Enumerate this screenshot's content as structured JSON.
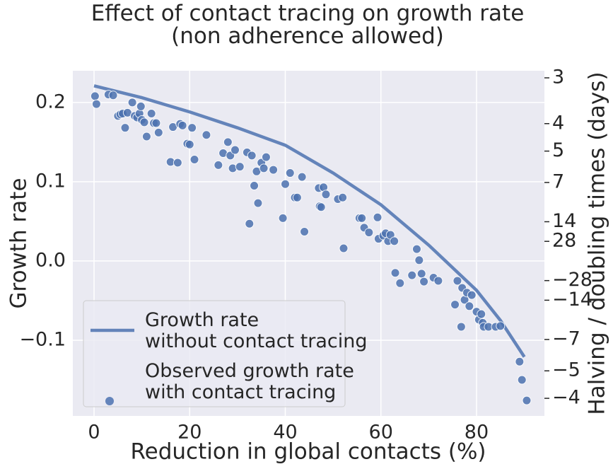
{
  "chart_data": {
    "type": "scatter",
    "title": "Effect of contact tracing on growth rate\n(non adherence allowed)",
    "xlabel": "Reduction in global contacts (%)",
    "ylabel": "Growth rate",
    "y2label": "Halving / doubling times (days)",
    "xlim": [
      -4.44,
      94.2
    ],
    "ylim": [
      -0.1955,
      0.24
    ],
    "y2lim": [
      -3.545,
      2.888
    ],
    "y2scale": "reciprocal",
    "xticks": [
      0,
      20,
      40,
      60,
      80
    ],
    "yticks": [
      {
        "value": -0.1,
        "label": "−0.1"
      },
      {
        "value": 0,
        "label": "0.0"
      },
      0.1,
      0.2
    ],
    "y2ticks": [
      3,
      4,
      5,
      7,
      14,
      28,
      {
        "value": -28,
        "label": "−28"
      },
      {
        "value": -14,
        "label": "−14"
      },
      {
        "value": -7,
        "label": "−7"
      },
      {
        "value": -5,
        "label": "−5"
      },
      {
        "value": -4,
        "label": "−4"
      }
    ],
    "grid": true,
    "legend": "lower left",
    "series": [
      {
        "name": "Growth rate\nwithout contact tracing",
        "type": "line",
        "color": "#4c72b0",
        "x": [
          0,
          10,
          20,
          30,
          40,
          50,
          60,
          70,
          80,
          85,
          90
        ],
        "values": [
          0.221,
          0.206,
          0.188,
          0.168,
          0.146,
          0.111,
          0.071,
          0.02,
          -0.037,
          -0.075,
          -0.121
        ]
      },
      {
        "name": "Observed growth rate\nwith contact tracing",
        "type": "scatter",
        "color": "#4c72b0",
        "x": [
          0.2,
          0.5,
          3,
          4,
          5,
          5.5,
          6,
          6.5,
          7,
          8,
          8.5,
          9,
          9.5,
          9.8,
          10,
          10.5,
          11,
          12,
          12.5,
          13,
          13.5,
          16,
          16.5,
          17.5,
          18,
          18.5,
          19.5,
          20,
          20.5,
          21,
          23.5,
          26,
          27,
          28,
          28.5,
          29,
          29.5,
          30.5,
          32,
          32.5,
          33,
          33.5,
          34,
          34.3,
          35,
          35.5,
          36,
          37.5,
          39.5,
          40,
          41,
          42,
          42.5,
          43.5,
          44,
          47,
          47.2,
          47.5,
          48,
          48.5,
          51,
          52,
          52.2,
          55.5,
          56,
          56.5,
          57.5,
          59.3,
          59.5,
          60.5,
          61,
          61.5,
          62,
          62.8,
          63,
          64,
          66.5,
          67.5,
          68,
          68.5,
          69,
          71,
          72,
          75.5,
          76,
          76.8,
          77,
          77.5,
          78,
          78.5,
          79,
          80,
          80.5,
          81,
          81.3,
          81.5,
          82.5,
          84,
          85,
          89,
          89.5,
          90.5
        ],
        "values": [
          0.208,
          0.198,
          0.21,
          0.209,
          0.183,
          0.185,
          0.186,
          0.168,
          0.187,
          0.2,
          0.183,
          0.181,
          0.186,
          0.195,
          0.178,
          0.175,
          0.157,
          0.186,
          0.174,
          0.174,
          0.162,
          0.125,
          0.169,
          0.124,
          0.173,
          0.171,
          0.148,
          0.147,
          0.168,
          0.128,
          0.159,
          0.121,
          0.136,
          0.15,
          0.133,
          0.117,
          0.14,
          0.119,
          0.137,
          0.047,
          0.133,
          0.095,
          0.113,
          0.073,
          0.124,
          0.117,
          0.131,
          0.115,
          0.054,
          0.097,
          0.111,
          0.08,
          0.08,
          0.106,
          0.037,
          0.092,
          0.069,
          0.068,
          0.093,
          0.084,
          0.078,
          0.08,
          0.016,
          0.054,
          0.054,
          0.042,
          0.036,
          0.055,
          0.028,
          0.032,
          0.035,
          0.025,
          0.033,
          0.025,
          -0.015,
          -0.028,
          -0.018,
          0.015,
          0.001,
          -0.016,
          -0.026,
          -0.021,
          -0.025,
          -0.055,
          -0.025,
          -0.083,
          -0.034,
          -0.049,
          -0.04,
          -0.057,
          -0.043,
          -0.064,
          -0.074,
          -0.067,
          -0.078,
          -0.083,
          -0.083,
          -0.083,
          -0.082,
          -0.127,
          -0.15,
          -0.176
        ]
      }
    ]
  }
}
